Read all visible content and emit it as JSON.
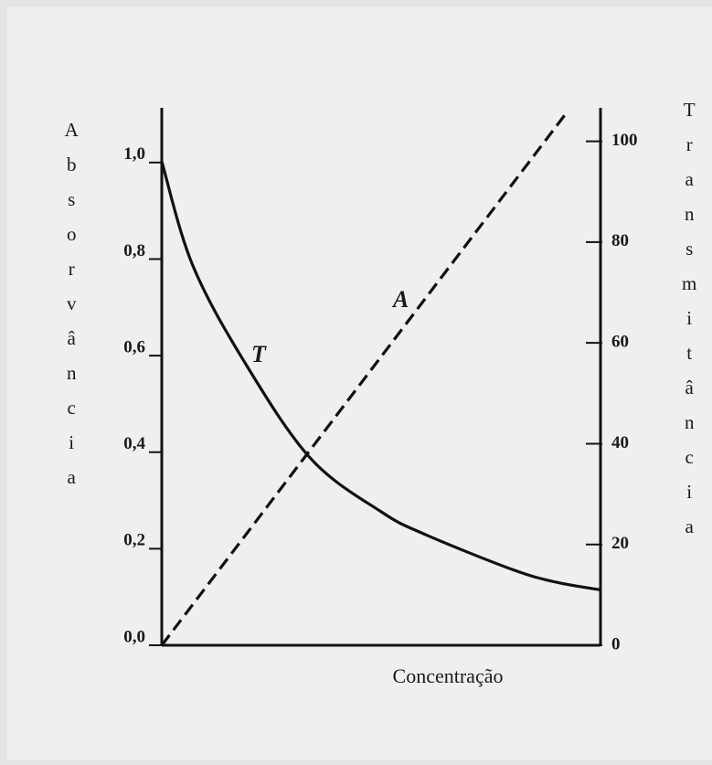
{
  "chart_data": {
    "type": "line",
    "x_label": "Concentração",
    "y_label": "Absorvância",
    "y2_label": "Transmitância",
    "xlim": [
      0,
      1
    ],
    "ylim": [
      0,
      1.1
    ],
    "yticks": [
      {
        "value": 0,
        "label": "0,0"
      },
      {
        "value": 0.2,
        "label": "0,2"
      },
      {
        "value": 0.4,
        "label": "0,4"
      },
      {
        "value": 0.6,
        "label": "0,6"
      },
      {
        "value": 0.8,
        "label": "0,8"
      },
      {
        "value": 1.0,
        "label": "1,0"
      }
    ],
    "y2lim": [
      0,
      107
    ],
    "y2ticks": [
      0,
      20,
      40,
      60,
      80,
      100
    ],
    "series": [
      {
        "name": "A",
        "color": "#111111",
        "dashed": true,
        "axis": "y",
        "x": [
          0,
          0.92
        ],
        "values": [
          0,
          1.1
        ]
      },
      {
        "name": "T",
        "color": "#111111",
        "dashed": false,
        "axis": "y2",
        "x": [
          0,
          0.07,
          0.19,
          0.34,
          0.5,
          0.6,
          0.8,
          0.9,
          1.0
        ],
        "values": [
          96,
          75.5,
          56,
          37,
          26.5,
          22,
          15,
          12.5,
          11
        ]
      }
    ],
    "annotations": [
      "A",
      "T"
    ]
  }
}
